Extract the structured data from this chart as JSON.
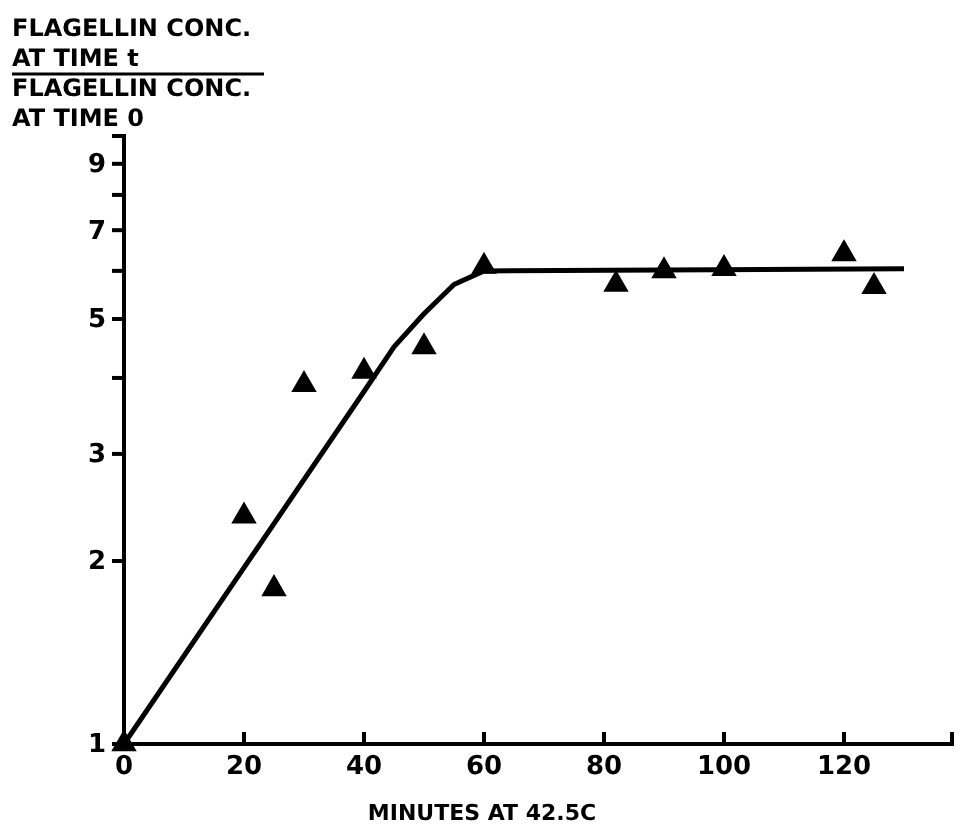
{
  "chart_data": {
    "type": "scatter",
    "xlabel": "MINUTES AT 42.5C",
    "ylabel": "FLAGELLIN CONC.\nAT TIME t\nFLAGELLIN CONC.\nAT TIME 0",
    "log": "y",
    "xlim": [
      0,
      138
    ],
    "ylim": [
      1,
      10
    ],
    "xticks": [
      0,
      20,
      40,
      60,
      80,
      100,
      120
    ],
    "yticks": [
      1,
      2,
      3,
      {
        "value": 4,
        "label": null
      },
      5,
      {
        "value": 6,
        "label": null
      },
      7,
      {
        "value": 8,
        "label": null
      },
      9,
      {
        "value": 10,
        "label": null
      }
    ],
    "grid": false,
    "series": [
      {
        "marker": "triangle",
        "color": "#000000",
        "x": [
          0,
          20,
          25,
          30,
          40,
          50,
          60,
          82,
          90,
          100,
          120,
          125
        ],
        "values": [
          1,
          2.37,
          1.8,
          3.9,
          4.1,
          4.5,
          6.1,
          5.7,
          6.0,
          6.05,
          6.4,
          5.65
        ]
      },
      {
        "type": "line",
        "marker": "none",
        "line_style": "solid",
        "color": "#000000",
        "x": [
          0,
          20,
          40,
          45,
          50,
          55,
          60,
          130
        ],
        "values": [
          1,
          1.95,
          3.8,
          4.5,
          5.1,
          5.7,
          6.0,
          6.05
        ]
      }
    ]
  }
}
